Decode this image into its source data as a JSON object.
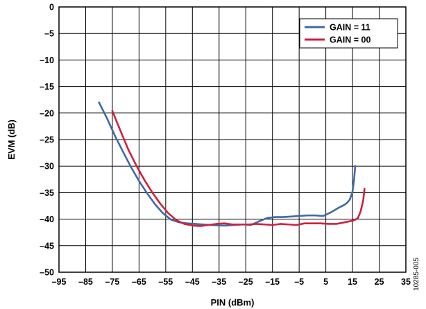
{
  "chart_data": {
    "type": "line",
    "title": "",
    "xlabel": "PIN (dBm)",
    "ylabel": "EVM (dB)",
    "xlim": [
      -95,
      35
    ],
    "ylim": [
      -50,
      0
    ],
    "xticks": [
      -95,
      -85,
      -75,
      -65,
      -55,
      -45,
      -35,
      -25,
      -15,
      -5,
      5,
      15,
      25,
      35
    ],
    "yticks": [
      0,
      -5,
      -10,
      -15,
      -20,
      -25,
      -30,
      -35,
      -40,
      -45,
      -50
    ],
    "xtick_labels": [
      "–95",
      "–85",
      "–75",
      "–65",
      "–55",
      "–45",
      "–35",
      "–25",
      "–15",
      "–5",
      "5",
      "15",
      "25",
      "35"
    ],
    "ytick_labels": [
      "0",
      "–5",
      "–10",
      "–15",
      "–20",
      "–25",
      "–30",
      "–35",
      "–40",
      "–45",
      "–50"
    ],
    "grid": true,
    "legend_position": "top-right",
    "series": [
      {
        "name": "GAIN = 11",
        "color": "#3d6aa6",
        "x": [
          -80,
          -77,
          -74,
          -71,
          -68,
          -65,
          -62,
          -59,
          -56,
          -53,
          -50,
          -47,
          -44,
          -41,
          -38,
          -35,
          -32,
          -29,
          -26,
          -23,
          -20,
          -17,
          -14,
          -11,
          -8,
          -5,
          -2,
          1,
          4,
          7,
          10,
          12,
          13,
          14,
          15,
          15.6,
          16
        ],
        "y": [
          -18,
          -21,
          -24.3,
          -27.3,
          -30.2,
          -32.8,
          -35.1,
          -37.2,
          -38.9,
          -40.1,
          -40.6,
          -40.8,
          -40.9,
          -41.0,
          -41.1,
          -41.2,
          -41.2,
          -41.1,
          -41.0,
          -41.1,
          -40.4,
          -39.8,
          -39.6,
          -39.6,
          -39.5,
          -39.4,
          -39.3,
          -39.3,
          -39.4,
          -38.7,
          -37.8,
          -37.3,
          -36.9,
          -36.3,
          -34.8,
          -32.5,
          -30.0
        ]
      },
      {
        "name": "GAIN = 00",
        "color": "#d11f3e",
        "x": [
          -75,
          -72,
          -69,
          -66,
          -63,
          -60,
          -57,
          -54,
          -51,
          -48,
          -45,
          -42,
          -39,
          -36,
          -33,
          -30,
          -27,
          -24,
          -21,
          -18,
          -15,
          -12,
          -9,
          -6,
          -3,
          0,
          3,
          6,
          9,
          12,
          15,
          16,
          17,
          18,
          19,
          19.5
        ],
        "y": [
          -19.6,
          -23.3,
          -26.9,
          -29.9,
          -32.6,
          -35.0,
          -37.1,
          -38.9,
          -40.2,
          -40.9,
          -41.2,
          -41.3,
          -41.1,
          -40.9,
          -40.8,
          -41.0,
          -41.0,
          -41.0,
          -40.9,
          -41.0,
          -41.1,
          -40.9,
          -41.0,
          -41.1,
          -40.8,
          -40.8,
          -40.8,
          -40.9,
          -40.9,
          -40.6,
          -40.3,
          -40.1,
          -39.8,
          -38.6,
          -36.5,
          -34.3
        ]
      }
    ]
  },
  "figure_id": "10285-005"
}
